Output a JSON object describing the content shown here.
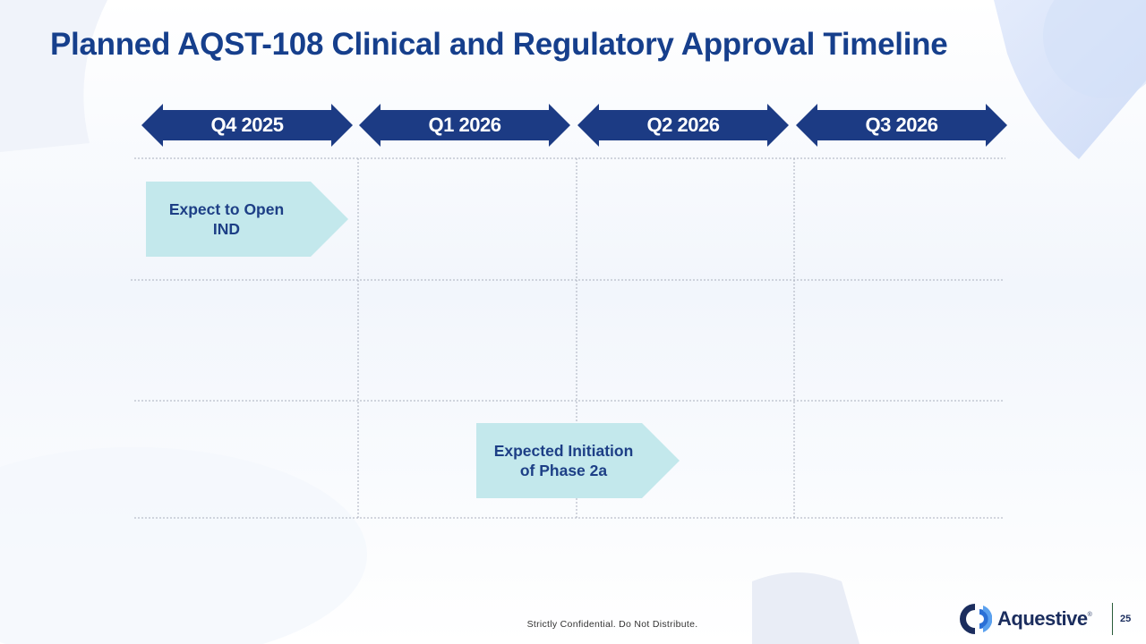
{
  "slide": {
    "title": "Planned AQST-108 Clinical and Regulatory Approval Timeline",
    "quarters": [
      "Q4 2025",
      "Q1 2026",
      "Q2 2026",
      "Q3 2026"
    ],
    "milestones": [
      {
        "line1": "Expect to Open",
        "line2": "IND"
      },
      {
        "line1": "Expected Initiation",
        "line2": "of Phase 2a"
      }
    ],
    "footer": "Strictly Confidential. Do Not Distribute.",
    "logo_text": "Aquestive",
    "logo_mark": "®",
    "page_number": "25"
  },
  "colors": {
    "title": "#163f8c",
    "quarter_arrow": "#1c3b84",
    "milestone_fill": "#c3e8ec",
    "milestone_text": "#1d3f86"
  },
  "icons": {
    "logo": "aquestive-logo-icon"
  }
}
